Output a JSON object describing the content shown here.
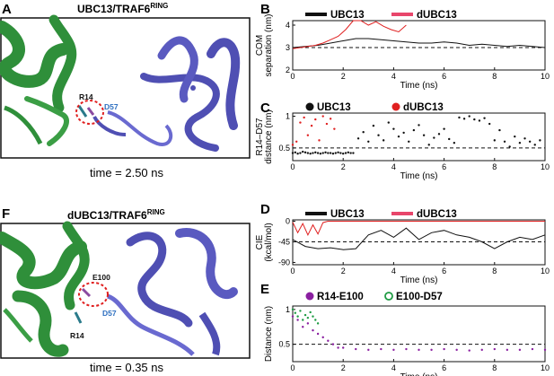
{
  "panels": {
    "A": {
      "letter": "A",
      "title": "UBC13/TRAF6",
      "title_sup": "RING",
      "caption": "time = 2.50 ns",
      "labels": [
        "R14",
        "D57"
      ]
    },
    "F": {
      "letter": "F",
      "title": "dUBC13/TRAF6",
      "title_sup": "RING",
      "caption": "time = 0.35 ns",
      "labels": [
        "E100",
        "D57",
        "R14"
      ]
    },
    "B": {
      "letter": "B"
    },
    "C": {
      "letter": "C"
    },
    "D": {
      "letter": "D"
    },
    "E": {
      "letter": "E"
    }
  },
  "colors": {
    "black": "#111111",
    "red": "#e02020",
    "pink": "#e8466b",
    "purple": "#8a1fa0",
    "green": "#1e9b43",
    "protein_green": "#2f8f3a",
    "protein_blue": "#4f4fb3"
  },
  "chart_data": [
    {
      "id": "B",
      "type": "line",
      "xlabel": "Time (ns)",
      "ylabel_lines": [
        "COM",
        "separation (nm)"
      ],
      "xlim": [
        0,
        10
      ],
      "ylim": [
        2,
        4.2
      ],
      "xticks": [
        0,
        2,
        4,
        6,
        8,
        10
      ],
      "yticks": [
        2,
        3,
        4
      ],
      "reference_line": 3.0,
      "series": [
        {
          "name": "UBC13",
          "color": "#111111",
          "x": [
            0,
            0.5,
            1,
            1.5,
            2,
            2.5,
            3,
            3.5,
            4,
            4.5,
            5,
            5.5,
            6,
            6.5,
            7,
            7.5,
            8,
            8.5,
            9,
            9.5,
            10
          ],
          "y": [
            3.0,
            3.05,
            3.1,
            3.2,
            3.3,
            3.4,
            3.4,
            3.35,
            3.3,
            3.25,
            3.2,
            3.2,
            3.25,
            3.2,
            3.1,
            3.15,
            3.1,
            3.05,
            3.1,
            3.05,
            3.0
          ]
        },
        {
          "name": "dUBC13",
          "color": "#e02020",
          "x": [
            0,
            0.3,
            0.6,
            0.9,
            1.2,
            1.5,
            1.8,
            2.1,
            2.4,
            2.7,
            3.0,
            3.3,
            3.6,
            3.9,
            4.2,
            4.5
          ],
          "y": [
            2.95,
            3.0,
            3.05,
            3.1,
            3.2,
            3.35,
            3.5,
            3.8,
            4.2,
            4.2,
            4.0,
            4.15,
            3.95,
            3.8,
            3.7,
            4.0
          ]
        }
      ]
    },
    {
      "id": "C",
      "type": "scatter",
      "xlabel": "Time (ns)",
      "ylabel_lines": [
        "R14–D57",
        "distance (nm)"
      ],
      "xlim": [
        0,
        10
      ],
      "ylim": [
        0.3,
        1.05
      ],
      "xticks": [
        0,
        2,
        4,
        6,
        8,
        10
      ],
      "yticks": [
        0.5,
        1
      ],
      "reference_line": 0.5,
      "series": [
        {
          "name": "UBC13",
          "color": "#111111",
          "x": [
            0.0,
            0.1,
            0.2,
            0.3,
            0.4,
            0.5,
            0.6,
            0.7,
            0.8,
            0.9,
            1.0,
            1.1,
            1.2,
            1.3,
            1.4,
            1.5,
            1.6,
            1.7,
            1.8,
            1.9,
            2.0,
            2.1,
            2.2,
            2.3,
            2.4,
            2.6,
            2.8,
            3.0,
            3.2,
            3.4,
            3.6,
            3.8,
            4.0,
            4.2,
            4.4,
            4.6,
            4.8,
            5.0,
            5.2,
            5.4,
            5.6,
            5.8,
            6.0,
            6.2,
            6.4,
            6.6,
            6.8,
            7.0,
            7.2,
            7.4,
            7.6,
            7.8,
            8.0,
            8.2,
            8.4,
            8.6,
            8.8,
            9.0,
            9.2,
            9.4,
            9.6,
            9.8
          ],
          "y": [
            0.42,
            0.43,
            0.41,
            0.42,
            0.44,
            0.43,
            0.42,
            0.41,
            0.42,
            0.43,
            0.42,
            0.41,
            0.42,
            0.43,
            0.42,
            0.42,
            0.41,
            0.42,
            0.43,
            0.42,
            0.41,
            0.42,
            0.43,
            0.42,
            0.42,
            0.65,
            0.75,
            0.6,
            0.85,
            0.7,
            0.62,
            0.9,
            0.8,
            0.68,
            0.74,
            0.6,
            0.78,
            0.86,
            0.7,
            0.55,
            0.66,
            0.72,
            0.8,
            0.64,
            0.58,
            0.98,
            0.96,
            1.0,
            0.95,
            0.93,
            0.97,
            0.88,
            0.62,
            0.78,
            0.6,
            0.52,
            0.68,
            0.58,
            0.65,
            0.6,
            0.55,
            0.62
          ]
        },
        {
          "name": "dUBC13",
          "color": "#e02020",
          "x": [
            0.0,
            0.15,
            0.3,
            0.45,
            0.6,
            0.75,
            0.9,
            1.05,
            1.2,
            1.35,
            1.5,
            1.65
          ],
          "y": [
            0.55,
            0.6,
            0.9,
            0.98,
            0.7,
            0.85,
            0.95,
            0.62,
            1.0,
            0.88,
            0.96,
            0.8
          ]
        }
      ]
    },
    {
      "id": "D",
      "type": "line",
      "xlabel": "Time (ns)",
      "ylabel_lines": [
        "CIE",
        "(kcal/mol)"
      ],
      "xlim": [
        0,
        10
      ],
      "ylim": [
        -95,
        3
      ],
      "xticks": [
        0,
        2,
        4,
        6,
        8,
        10
      ],
      "yticks": [
        0,
        -45,
        -90
      ],
      "reference_line": -45,
      "series": [
        {
          "name": "UBC13",
          "color": "#111111",
          "x": [
            0,
            0.5,
            1,
            1.5,
            2,
            2.5,
            3,
            3.5,
            4,
            4.5,
            5,
            5.5,
            6,
            6.5,
            7,
            7.5,
            8,
            8.5,
            9,
            9.5,
            10
          ],
          "y": [
            -40,
            -55,
            -60,
            -58,
            -62,
            -60,
            -30,
            -20,
            -35,
            -15,
            -40,
            -25,
            -20,
            -30,
            -35,
            -45,
            -60,
            -45,
            -35,
            -40,
            -30
          ]
        },
        {
          "name": "dUBC13",
          "color": "#e02020",
          "x": [
            0,
            0.2,
            0.4,
            0.6,
            0.8,
            1.0,
            1.2,
            1.4,
            1.6,
            2,
            4,
            6,
            8,
            10
          ],
          "y": [
            -2,
            -25,
            -5,
            -30,
            -8,
            -28,
            -3,
            0,
            0,
            0,
            0,
            0,
            0,
            0
          ]
        }
      ]
    },
    {
      "id": "E",
      "type": "scatter",
      "xlabel": "Time (ns)",
      "ylabel_lines": [
        "Distance (nm)"
      ],
      "xlim": [
        0,
        10
      ],
      "ylim": [
        0.25,
        1.05
      ],
      "xticks": [
        0,
        2,
        4,
        6,
        8,
        10
      ],
      "yticks": [
        0.5,
        1
      ],
      "reference_line": 0.5,
      "series": [
        {
          "name": "R14-E100",
          "color": "#8a1fa0",
          "x": [
            0.0,
            0.2,
            0.4,
            0.6,
            0.8,
            1.0,
            1.2,
            1.4,
            1.6,
            1.8,
            2.0,
            2.5,
            3.0,
            3.5,
            4.0,
            4.5,
            5.0,
            5.5,
            6.0,
            6.5,
            7.0,
            7.5,
            8.0,
            8.5,
            9.0,
            9.5,
            10.0
          ],
          "y": [
            0.9,
            0.85,
            0.75,
            0.8,
            0.7,
            0.65,
            0.6,
            0.55,
            0.5,
            0.45,
            0.45,
            0.43,
            0.42,
            0.43,
            0.42,
            0.43,
            0.42,
            0.42,
            0.43,
            0.42,
            0.41,
            0.42,
            0.43,
            0.42,
            0.42,
            0.43,
            0.42
          ]
        },
        {
          "name": "E100-D57",
          "color": "#1e9b43",
          "x": [
            0.0,
            0.1,
            0.2,
            0.3,
            0.4,
            0.5,
            0.6,
            0.7,
            0.8,
            0.9,
            1.0
          ],
          "y": [
            1.0,
            0.95,
            0.9,
            0.98,
            0.85,
            0.92,
            0.88,
            0.96,
            0.9,
            0.85,
            0.8
          ]
        }
      ]
    }
  ]
}
